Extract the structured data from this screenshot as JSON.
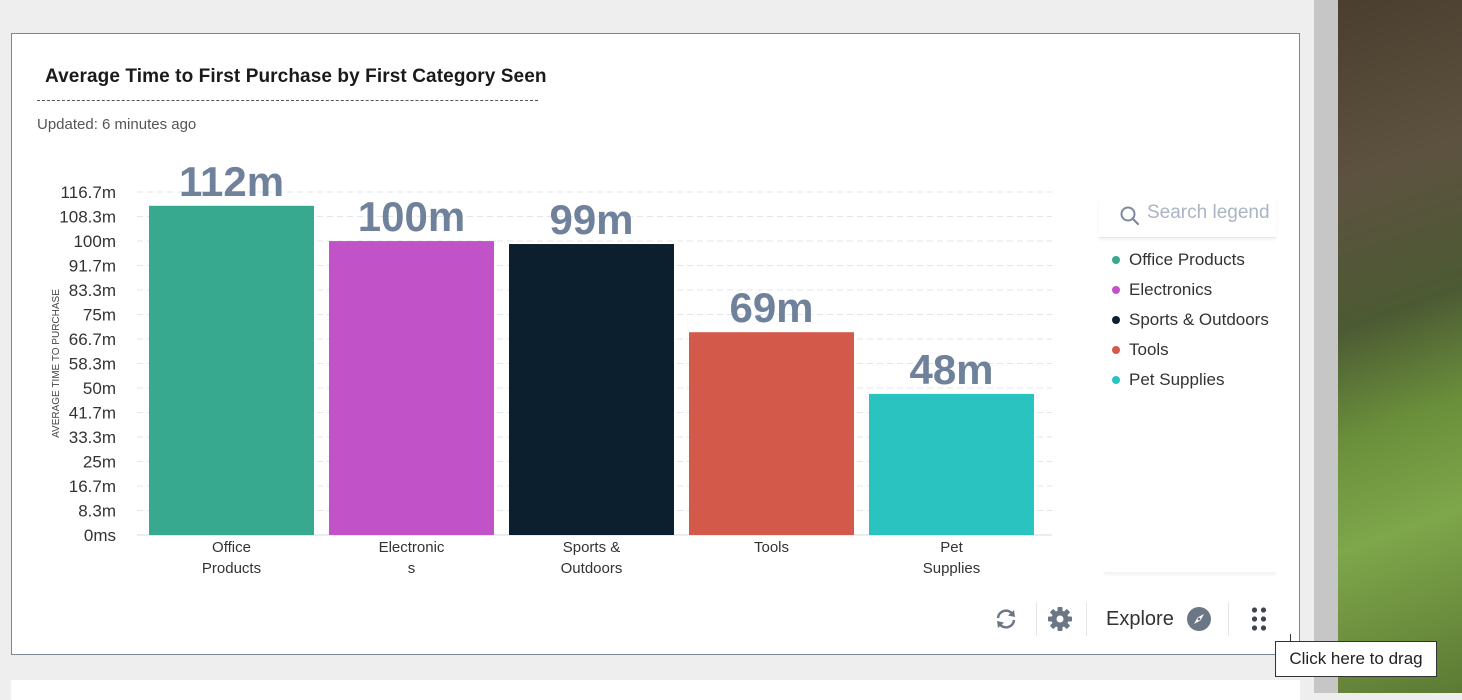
{
  "card": {
    "title": "Average Time to First Purchase by First Category Seen",
    "updated": "Updated: 6 minutes ago"
  },
  "chart_data": {
    "type": "bar",
    "title": "Average Time to First Purchase by First Category Seen",
    "ylabel": "AVERAGE TIME TO PURCHASE",
    "xlabel": "",
    "ylim": [
      0,
      116.7
    ],
    "y_ticks": [
      "0ms",
      "8.3m",
      "16.7m",
      "25m",
      "33.3m",
      "41.7m",
      "50m",
      "58.3m",
      "66.7m",
      "75m",
      "83.3m",
      "91.7m",
      "100m",
      "108.3m",
      "116.7m"
    ],
    "categories": [
      "Office Products",
      "Electronics",
      "Sports & Outdoors",
      "Tools",
      "Pet Supplies"
    ],
    "category_tick_lines": [
      [
        "Office",
        "Products"
      ],
      [
        "Electronic",
        "s"
      ],
      [
        "Sports &",
        "Outdoors"
      ],
      [
        "Tools"
      ],
      [
        "Pet",
        "Supplies"
      ]
    ],
    "values": [
      112,
      100,
      99,
      69,
      48
    ],
    "value_labels": [
      "112m",
      "100m",
      "99m",
      "69m",
      "48m"
    ],
    "colors": [
      "#36a98f",
      "#c252c8",
      "#0c1f2e",
      "#d35a4b",
      "#2bc3bf"
    ],
    "grid": true,
    "legend_position": "right"
  },
  "legend": {
    "search_placeholder": "Search legend",
    "items": [
      {
        "label": "Office Products",
        "color": "#36a98f"
      },
      {
        "label": "Electronics",
        "color": "#c252c8"
      },
      {
        "label": "Sports & Outdoors",
        "color": "#0c1f2e"
      },
      {
        "label": "Tools",
        "color": "#d35a4b"
      },
      {
        "label": "Pet Supplies",
        "color": "#2bc3bf"
      }
    ]
  },
  "toolbar": {
    "refresh_icon": "refresh-icon",
    "settings_icon": "gear-icon",
    "explore_label": "Explore",
    "explore_icon": "compass-icon",
    "drag_icon": "drag-handle-icon"
  },
  "tooltip": {
    "drag": "Click here to drag"
  }
}
